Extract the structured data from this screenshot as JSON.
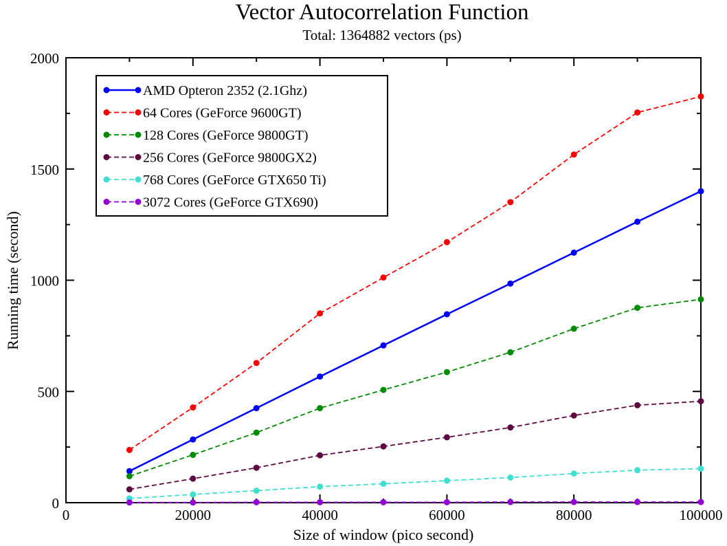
{
  "chart_data": {
    "type": "line",
    "title": "Vector Autocorrelation Function",
    "subtitle": "Total: 1364882 vectors (ps)",
    "xlabel": "Size of window (pico second)",
    "ylabel": "Running time (second)",
    "xlim": [
      0,
      100000
    ],
    "ylim": [
      0,
      2000
    ],
    "xticks": [
      0,
      20000,
      40000,
      60000,
      80000,
      100000
    ],
    "yticks": [
      0,
      500,
      1000,
      1500,
      2000
    ],
    "grid": false,
    "legend_position": "top-left",
    "x": [
      10000,
      20000,
      30000,
      40000,
      50000,
      60000,
      70000,
      80000,
      90000,
      100000
    ],
    "series": [
      {
        "name": "AMD Opteron 2352 (2.1Ghz)",
        "color": "#0000ff",
        "style": "solid",
        "values": [
          142,
          284,
          425,
          567,
          707,
          847,
          985,
          1124,
          1263,
          1400
        ]
      },
      {
        "name": "64 Cores (GeForce 9600GT)",
        "color": "#ff0000",
        "style": "dashed",
        "values": [
          237,
          428,
          628,
          851,
          1012,
          1171,
          1351,
          1565,
          1754,
          1826
        ]
      },
      {
        "name": "128 Cores (GeForce 9800GT)",
        "color": "#008b00",
        "style": "dashed",
        "values": [
          119,
          215,
          315,
          425,
          507,
          587,
          676,
          782,
          876,
          914
        ]
      },
      {
        "name": "256 Cores (GeForce 9800GX2)",
        "color": "#5c0a40",
        "style": "dashed",
        "values": [
          60,
          108,
          157,
          213,
          253,
          294,
          338,
          392,
          438,
          456
        ]
      },
      {
        "name": "768 Cores (GeForce GTX650 Ti)",
        "color": "#40e0d0",
        "style": "dashed",
        "values": [
          19,
          37,
          54,
          72,
          85,
          99,
          113,
          131,
          146,
          153
        ]
      },
      {
        "name": "3072 Cores (GeForce GTX690)",
        "color": "#9400d3",
        "style": "dashed",
        "values": [
          1,
          1,
          2,
          2,
          2,
          2,
          3,
          3,
          3,
          3
        ]
      }
    ]
  }
}
